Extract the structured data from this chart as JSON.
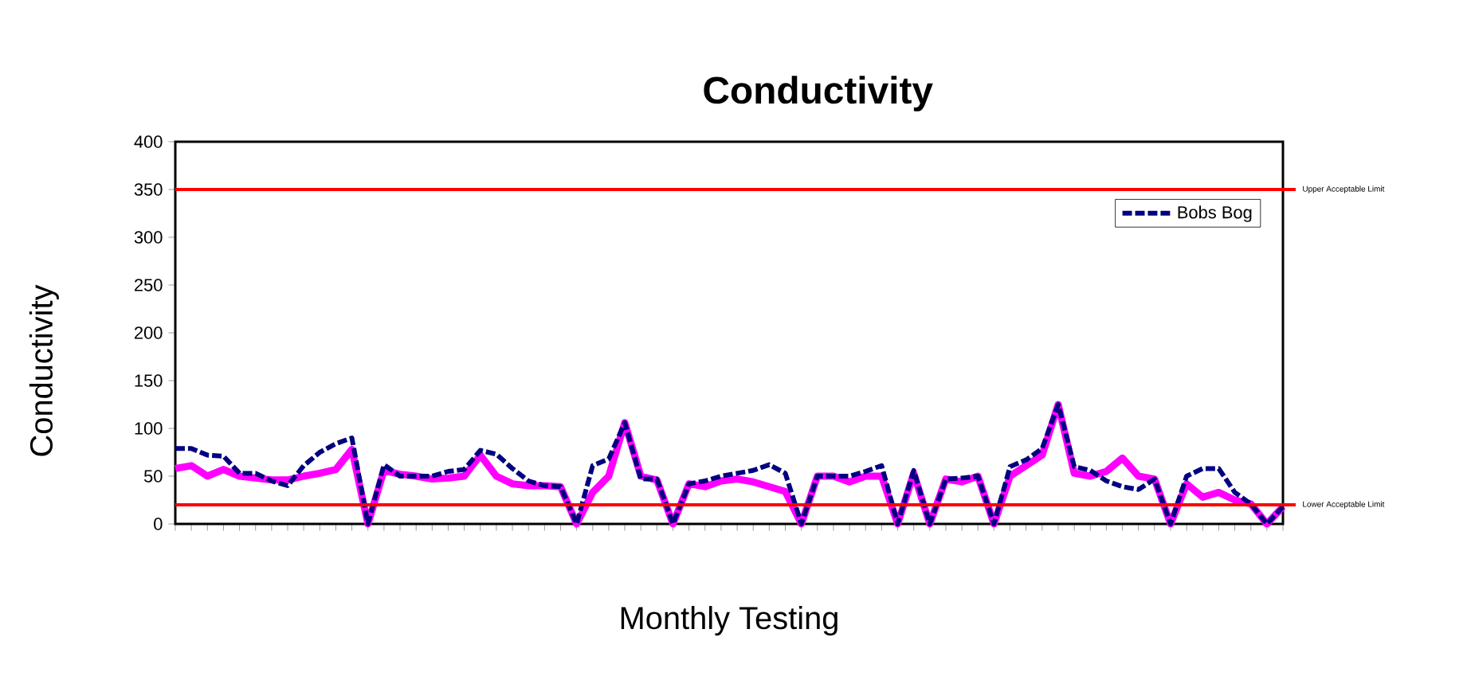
{
  "chart_data": {
    "type": "line",
    "title": "Conductivity",
    "xlabel": "Monthly Testing",
    "ylabel": "Conductivity",
    "categories": [
      null,
      null,
      null,
      null,
      null,
      null,
      null,
      null,
      null,
      null,
      null,
      null,
      null,
      null,
      null,
      null,
      null,
      null,
      null,
      null,
      null,
      null,
      null,
      null,
      null,
      null,
      null,
      null,
      null,
      null,
      null,
      null,
      null,
      null,
      null,
      null,
      null,
      null,
      null,
      null,
      null,
      null,
      null,
      null,
      null,
      null,
      null,
      null,
      null,
      null,
      null,
      null,
      null,
      null,
      null,
      null,
      null,
      null,
      null,
      null,
      null,
      null,
      null,
      null,
      null,
      null,
      null,
      null,
      null,
      null
    ],
    "ylim": [
      0,
      400
    ],
    "yticks": [
      0,
      50,
      100,
      150,
      200,
      250,
      300,
      350,
      400
    ],
    "grid": false,
    "legend": "top right",
    "marker": "none",
    "series": [
      {
        "name": "Bobs Bog",
        "color": "#000080",
        "line_style": "dashed",
        "values": [
          79,
          79,
          72,
          71,
          53,
          53,
          45,
          40,
          61,
          75,
          84,
          90,
          0,
          62,
          50,
          50,
          50,
          55,
          57,
          77,
          73,
          58,
          45,
          40,
          39,
          0,
          61,
          68,
          106,
          47,
          47,
          0,
          42,
          45,
          50,
          53,
          56,
          62,
          53,
          0,
          50,
          50,
          50,
          55,
          61,
          0,
          56,
          0,
          47,
          48,
          50,
          0,
          60,
          67,
          79,
          125,
          60,
          56,
          45,
          39,
          36,
          47,
          0,
          50,
          58,
          58,
          33,
          21,
          0,
          18
        ]
      },
      {
        "color": "#ff00ff",
        "line_style": "solid",
        "values": [
          58,
          61,
          50,
          57,
          50,
          48,
          46,
          46,
          50,
          53,
          57,
          78,
          0,
          56,
          52,
          50,
          47,
          48,
          50,
          72,
          50,
          42,
          40,
          40,
          39,
          0,
          33,
          50,
          106,
          50,
          46,
          0,
          42,
          39,
          45,
          47,
          44,
          39,
          34,
          0,
          50,
          50,
          44,
          50,
          50,
          0,
          53,
          0,
          47,
          44,
          50,
          0,
          50,
          61,
          72,
          125,
          53,
          50,
          55,
          69,
          50,
          47,
          0,
          42,
          28,
          33,
          25,
          21,
          0,
          18
        ]
      }
    ],
    "ref_lines": [
      {
        "axis": "y",
        "value": 350,
        "label": "Upper Acceptable Limit",
        "color": "#ff0000"
      },
      {
        "axis": "y",
        "value": 20,
        "label": "Lower Acceptable Limit",
        "color": "#ff0000"
      }
    ]
  }
}
